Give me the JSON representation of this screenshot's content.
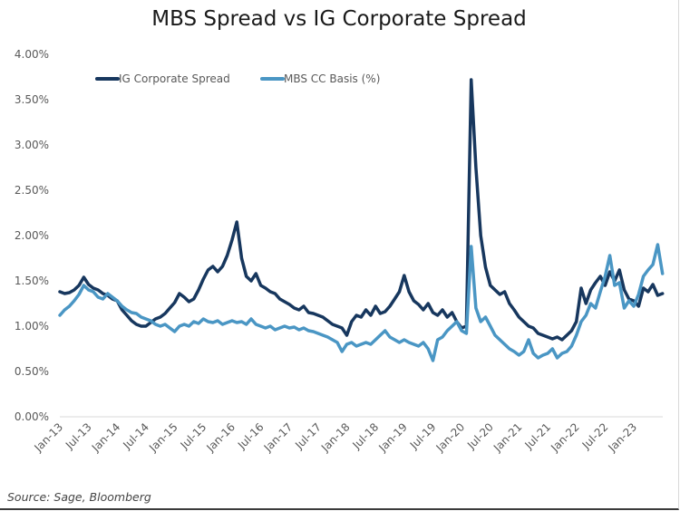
{
  "chart_data": {
    "type": "line",
    "title": "MBS Spread vs IG Corporate Spread",
    "xlabel": "",
    "ylabel": "",
    "ylim": [
      0,
      4
    ],
    "yticks": [
      "0.00%",
      "0.50%",
      "1.00%",
      "1.50%",
      "2.00%",
      "2.50%",
      "3.00%",
      "3.50%",
      "4.00%"
    ],
    "ytick_values": [
      0,
      0.5,
      1.0,
      1.5,
      2.0,
      2.5,
      3.0,
      3.5,
      4.0
    ],
    "xticks": [
      "Jan-13",
      "Jul-13",
      "Jan-14",
      "Jul-14",
      "Jan-15",
      "Jul-15",
      "Jan-16",
      "Jul-16",
      "Jan-17",
      "Jul-17",
      "Jan-18",
      "Jul-18",
      "Jan-19",
      "Jul-19",
      "Jan-20",
      "Jul-20",
      "Jan-21",
      "Jul-21",
      "Jan-22",
      "Jul-22",
      "Jan-23"
    ],
    "x_start": "Jan-13",
    "x_unit": "month",
    "grid": false,
    "legend_position": "top-left",
    "series": [
      {
        "name": "IG Corporate Spread",
        "color": "#17375e",
        "values": [
          1.38,
          1.36,
          1.37,
          1.4,
          1.45,
          1.54,
          1.46,
          1.42,
          1.4,
          1.36,
          1.34,
          1.3,
          1.28,
          1.18,
          1.12,
          1.06,
          1.02,
          1.0,
          1.0,
          1.04,
          1.08,
          1.1,
          1.14,
          1.2,
          1.26,
          1.36,
          1.32,
          1.27,
          1.3,
          1.4,
          1.52,
          1.62,
          1.66,
          1.6,
          1.66,
          1.78,
          1.95,
          2.15,
          1.75,
          1.55,
          1.5,
          1.58,
          1.45,
          1.42,
          1.38,
          1.36,
          1.3,
          1.27,
          1.24,
          1.2,
          1.18,
          1.22,
          1.15,
          1.14,
          1.12,
          1.1,
          1.06,
          1.02,
          1.0,
          0.98,
          0.9,
          1.05,
          1.12,
          1.1,
          1.18,
          1.12,
          1.22,
          1.14,
          1.16,
          1.22,
          1.3,
          1.38,
          1.56,
          1.38,
          1.28,
          1.24,
          1.18,
          1.25,
          1.15,
          1.12,
          1.18,
          1.1,
          1.15,
          1.05,
          0.98,
          1.0,
          3.72,
          2.75,
          2.0,
          1.65,
          1.45,
          1.4,
          1.35,
          1.38,
          1.25,
          1.18,
          1.1,
          1.05,
          1.0,
          0.98,
          0.92,
          0.9,
          0.88,
          0.86,
          0.88,
          0.85,
          0.9,
          0.95,
          1.05,
          1.42,
          1.25,
          1.4,
          1.48,
          1.55,
          1.45,
          1.6,
          1.5,
          1.62,
          1.4,
          1.3,
          1.28,
          1.22,
          1.42,
          1.38,
          1.46,
          1.34,
          1.36
        ]
      },
      {
        "name": "MBS CC Basis (%)",
        "color": "#4a96c4",
        "values": [
          1.12,
          1.18,
          1.22,
          1.28,
          1.35,
          1.45,
          1.4,
          1.38,
          1.32,
          1.3,
          1.36,
          1.32,
          1.28,
          1.22,
          1.18,
          1.15,
          1.14,
          1.1,
          1.08,
          1.06,
          1.02,
          1.0,
          1.02,
          0.98,
          0.94,
          1.0,
          1.02,
          1.0,
          1.05,
          1.03,
          1.08,
          1.05,
          1.04,
          1.06,
          1.02,
          1.04,
          1.06,
          1.04,
          1.05,
          1.02,
          1.08,
          1.02,
          1.0,
          0.98,
          1.0,
          0.96,
          0.98,
          1.0,
          0.98,
          0.99,
          0.96,
          0.98,
          0.95,
          0.94,
          0.92,
          0.9,
          0.88,
          0.85,
          0.82,
          0.72,
          0.8,
          0.82,
          0.78,
          0.8,
          0.82,
          0.8,
          0.85,
          0.9,
          0.95,
          0.88,
          0.85,
          0.82,
          0.85,
          0.82,
          0.8,
          0.78,
          0.82,
          0.75,
          0.62,
          0.85,
          0.88,
          0.95,
          1.0,
          1.05,
          0.95,
          0.92,
          1.88,
          1.2,
          1.05,
          1.1,
          1.0,
          0.9,
          0.85,
          0.8,
          0.75,
          0.72,
          0.68,
          0.72,
          0.85,
          0.7,
          0.65,
          0.68,
          0.7,
          0.75,
          0.65,
          0.7,
          0.72,
          0.78,
          0.9,
          1.05,
          1.12,
          1.25,
          1.2,
          1.38,
          1.55,
          1.78,
          1.45,
          1.48,
          1.2,
          1.28,
          1.22,
          1.35,
          1.55,
          1.62,
          1.68,
          1.9,
          1.58
        ]
      }
    ],
    "source": "Source: Sage, Bloomberg"
  },
  "page": {
    "title": "MBS Spread vs IG Corporate Spread",
    "source": "Source: Sage, Bloomberg"
  }
}
